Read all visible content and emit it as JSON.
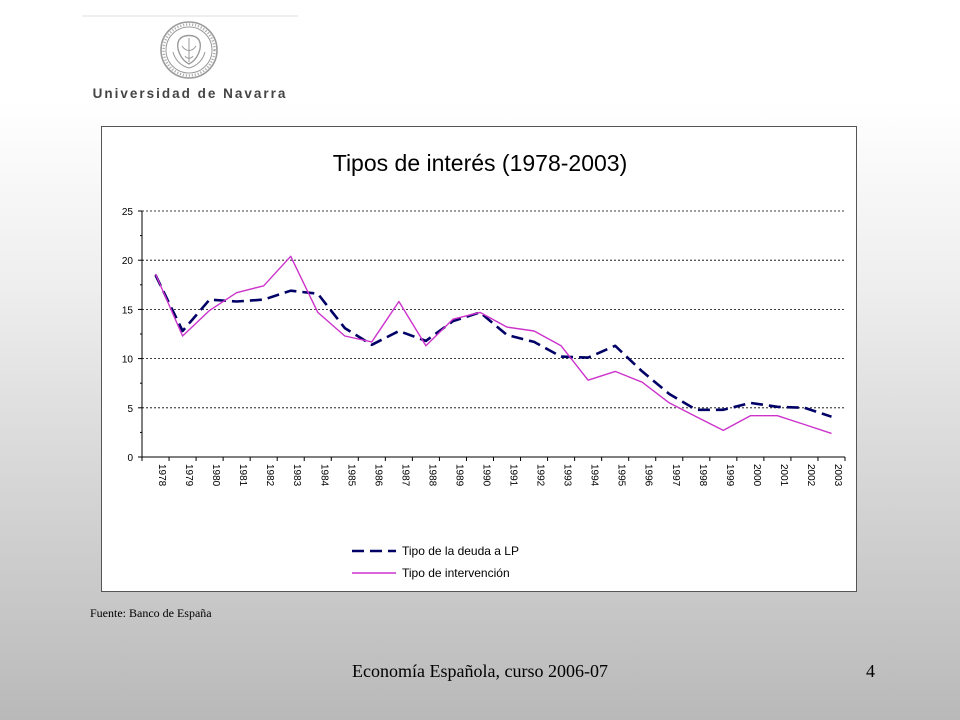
{
  "logo": {
    "text": "Universidad de Navarra",
    "icon": "university-seal-icon"
  },
  "chart_data": {
    "type": "line",
    "title": "Tipos de interés (1978-2003)",
    "xlabel": "",
    "ylabel": "",
    "ylim": [
      0,
      25
    ],
    "yticks": [
      0,
      5,
      10,
      15,
      20,
      25
    ],
    "grid": true,
    "legend_position": "bottom",
    "x": [
      "1978",
      "1979",
      "1980",
      "1981",
      "1982",
      "1983",
      "1984",
      "1985",
      "1986",
      "1987",
      "1988",
      "1989",
      "1990",
      "1991",
      "1992",
      "1993",
      "1994",
      "1995",
      "1996",
      "1997",
      "1998",
      "1999",
      "2000",
      "2001",
      "2002",
      "2003"
    ],
    "series": [
      {
        "name": "Tipo de la deuda a LP",
        "color": "#000066",
        "style": "dashed",
        "values": [
          18.5,
          12.8,
          16.0,
          15.8,
          16.0,
          16.9,
          16.6,
          13.1,
          11.4,
          12.8,
          11.8,
          13.8,
          14.7,
          12.4,
          11.7,
          10.2,
          10.1,
          11.3,
          8.7,
          6.4,
          4.8,
          4.8,
          5.5,
          5.1,
          5.0,
          4.1
        ]
      },
      {
        "name": "Tipo de intervención",
        "color": "#cc33cc",
        "style": "solid",
        "values": [
          18.6,
          12.3,
          14.9,
          16.7,
          17.4,
          20.4,
          14.7,
          12.3,
          11.7,
          15.8,
          11.3,
          14.0,
          14.7,
          13.2,
          12.8,
          11.3,
          7.8,
          8.7,
          7.6,
          5.5,
          4.1,
          2.7,
          4.2,
          4.2,
          3.3,
          2.4
        ]
      }
    ]
  },
  "source_text": "Fuente: Banco de España",
  "footer": {
    "text": "Economía Española, curso 2006-07",
    "page": "4"
  }
}
